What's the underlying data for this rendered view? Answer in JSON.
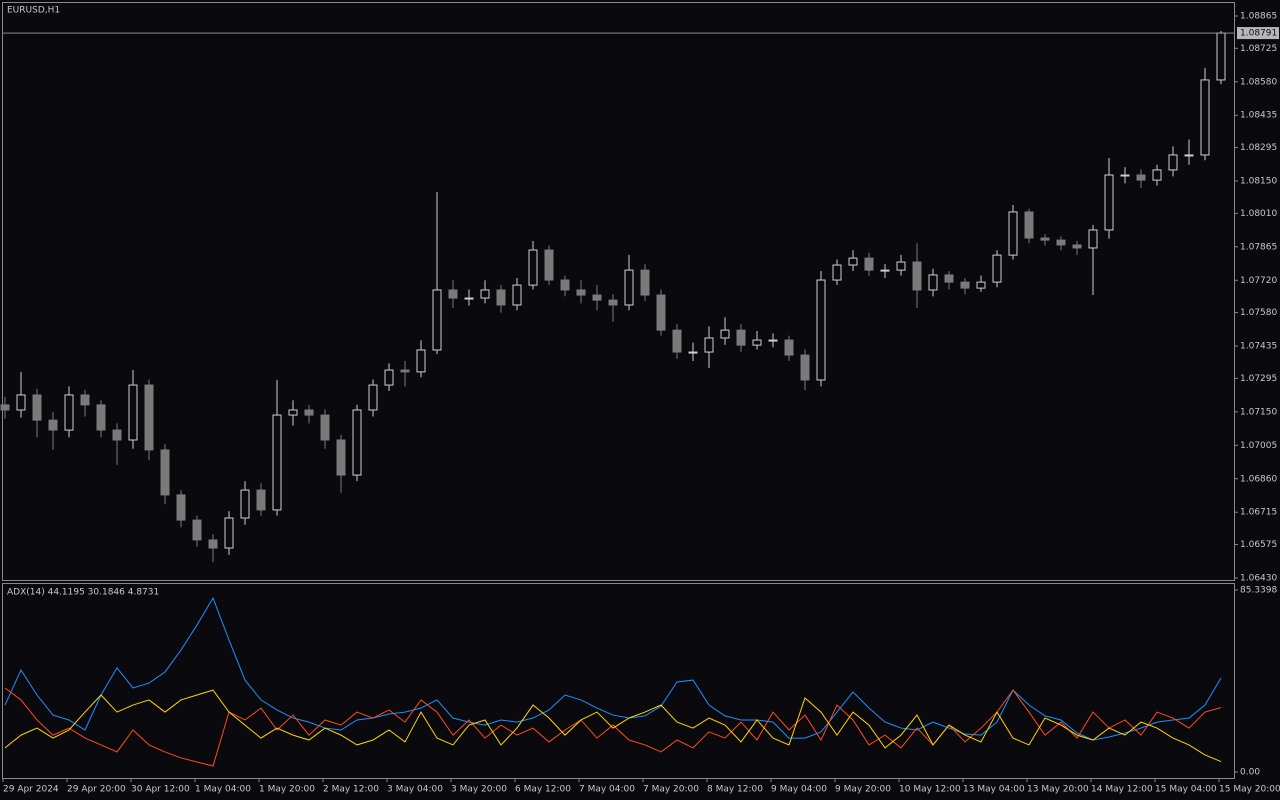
{
  "chart_data": [
    {
      "type": "candlestick",
      "title": "EURUSD,H1",
      "open": [
        1.0718,
        1.07158,
        1.07223,
        1.07114,
        1.07071,
        1.07223,
        1.0718,
        1.07071,
        1.07028,
        1.07266,
        1.06985,
        1.0679,
        1.06681,
        1.06595,
        1.0656,
        1.0669,
        1.06811,
        1.06725,
        1.07136,
        1.07158,
        1.07136,
        1.07028,
        1.06876,
        1.07158,
        1.07266,
        1.07331,
        1.07323,
        1.07418,
        1.07678,
        1.07643,
        1.07643,
        1.07678,
        1.07613,
        1.07699,
        1.07851,
        1.07721,
        1.07678,
        1.07656,
        1.07634,
        1.07613,
        1.07764,
        1.07656,
        1.07504,
        1.07409,
        1.07409,
        1.0747,
        1.07504,
        1.07439,
        1.07461,
        1.07461,
        1.07396,
        1.07288,
        1.07721,
        1.07786,
        1.07816,
        1.07764,
        1.07764,
        1.07799,
        1.07678,
        1.07743,
        1.07712,
        1.07686,
        1.07712,
        1.07829,
        1.08016,
        1.07903,
        1.07894,
        1.07873,
        1.0786,
        1.07938,
        1.08176,
        1.08176,
        1.08154,
        1.08198,
        1.08263,
        1.08263,
        1.08588
      ],
      "high": [
        1.07215,
        1.07323,
        1.0725,
        1.0715,
        1.0726,
        1.07245,
        1.072,
        1.071,
        1.07331,
        1.0729,
        1.0701,
        1.0681,
        1.067,
        1.0662,
        1.0672,
        1.0685,
        1.0684,
        1.07288,
        1.072,
        1.0718,
        1.0716,
        1.0705,
        1.0718,
        1.0729,
        1.0736,
        1.0737,
        1.0746,
        1.08102,
        1.0772,
        1.0768,
        1.0772,
        1.077,
        1.0773,
        1.0789,
        1.0787,
        1.0774,
        1.0772,
        1.077,
        1.0766,
        1.0783,
        1.0779,
        1.0768,
        1.0753,
        1.0745,
        1.0752,
        1.0756,
        1.0753,
        1.075,
        1.0749,
        1.0748,
        1.0742,
        1.0776,
        1.0781,
        1.0785,
        1.0784,
        1.0779,
        1.0783,
        1.0788,
        1.0777,
        1.0776,
        1.0773,
        1.0774,
        1.0785,
        1.08046,
        1.0803,
        1.0792,
        1.0791,
        1.0789,
        1.0796,
        1.0825,
        1.0821,
        1.082,
        1.0822,
        1.083,
        1.0833,
        1.0864,
        1.088
      ],
      "low": [
        1.0712,
        1.07125,
        1.0704,
        1.06985,
        1.0704,
        1.0713,
        1.0704,
        1.0692,
        1.0699,
        1.0694,
        1.0675,
        1.0665,
        1.06565,
        1.06499,
        1.0653,
        1.0666,
        1.067,
        1.067,
        1.0709,
        1.071,
        1.0699,
        1.068,
        1.0685,
        1.0713,
        1.0724,
        1.0726,
        1.073,
        1.074,
        1.076,
        1.0761,
        1.0762,
        1.0758,
        1.0759,
        1.0768,
        1.077,
        1.0765,
        1.0762,
        1.0759,
        1.0754,
        1.0759,
        1.0763,
        1.0748,
        1.0738,
        1.0737,
        1.0734,
        1.0744,
        1.0741,
        1.0742,
        1.0743,
        1.0737,
        1.07244,
        1.0726,
        1.077,
        1.0776,
        1.0774,
        1.0773,
        1.0774,
        1.076,
        1.0765,
        1.0768,
        1.0766,
        1.0767,
        1.0769,
        1.0781,
        1.0788,
        1.0787,
        1.0785,
        1.0783,
        1.07656,
        1.079,
        1.0814,
        1.0812,
        1.0813,
        1.0817,
        1.0822,
        1.0824,
        1.0857
      ],
      "close": [
        1.07158,
        1.07223,
        1.07114,
        1.07071,
        1.07223,
        1.0718,
        1.07071,
        1.07028,
        1.07266,
        1.06985,
        1.0679,
        1.06681,
        1.06595,
        1.0656,
        1.0669,
        1.06811,
        1.06725,
        1.07136,
        1.07158,
        1.07136,
        1.07028,
        1.06876,
        1.07158,
        1.07266,
        1.07331,
        1.07323,
        1.07418,
        1.07678,
        1.07643,
        1.07643,
        1.07678,
        1.07613,
        1.07699,
        1.07851,
        1.07721,
        1.07678,
        1.07656,
        1.07634,
        1.07613,
        1.07764,
        1.07656,
        1.07504,
        1.07409,
        1.07409,
        1.0747,
        1.07504,
        1.07439,
        1.07461,
        1.07461,
        1.07396,
        1.07288,
        1.07721,
        1.07786,
        1.07816,
        1.07764,
        1.07764,
        1.07799,
        1.07678,
        1.07743,
        1.07712,
        1.07686,
        1.07712,
        1.07829,
        1.08016,
        1.07903,
        1.07894,
        1.07873,
        1.0786,
        1.07938,
        1.08176,
        1.08176,
        1.08154,
        1.08198,
        1.08263,
        1.08263,
        1.08588,
        1.08791
      ],
      "up_color": "#cfcfcf",
      "down_color": "#7a7a7a",
      "ylim": [
        1.0643,
        1.08865
      ],
      "yticks": [
        1.08865,
        1.08725,
        {
          "value": 1.0858,
          "label": "1.08580"
        },
        1.08435,
        1.08295,
        {
          "value": 1.0815,
          "label": "1.08150"
        },
        {
          "value": 1.0801,
          "label": "1.08010"
        },
        1.07865,
        {
          "value": 1.0772,
          "label": "1.07720"
        },
        {
          "value": 1.0758,
          "label": "1.07580"
        },
        1.07435,
        1.07295,
        {
          "value": 1.0715,
          "label": "1.07150"
        },
        1.07005,
        {
          "value": 1.0686,
          "label": "1.06860"
        },
        1.06715,
        1.06575,
        {
          "value": 1.0643,
          "label": "1.06430"
        }
      ],
      "grid": false
    },
    {
      "type": "line",
      "title": "ADX(14) 44.1195 30.1846 4.8731",
      "categories": [
        "29 Apr 2024",
        null,
        null,
        null,
        "29 Apr 20:00",
        null,
        null,
        null,
        "30 Apr 12:00",
        null,
        null,
        null,
        "1 May 04:00",
        null,
        null,
        null,
        "1 May 20:00",
        null,
        null,
        null,
        "2 May 12:00",
        null,
        null,
        null,
        "3 May 04:00",
        null,
        null,
        null,
        "3 May 20:00",
        null,
        null,
        null,
        "6 May 12:00",
        null,
        null,
        null,
        "7 May 04:00",
        null,
        null,
        null,
        "7 May 20:00",
        null,
        null,
        null,
        "8 May 12:00",
        null,
        null,
        null,
        "9 May 04:00",
        null,
        null,
        null,
        "9 May 20:00",
        null,
        null,
        null,
        "10 May 12:00",
        null,
        null,
        null,
        "13 May 04:00",
        null,
        null,
        null,
        "13 May 20:00",
        null,
        null,
        null,
        "14 May 12:00",
        null,
        null,
        null,
        "15 May 04:00",
        null,
        null,
        null,
        "15 May 20:00"
      ],
      "series": [
        {
          "color": "#1e90ff",
          "values": [
            31.4,
            47.8,
            36.1,
            26.7,
            24.4,
            19.7,
            36.1,
            48.8,
            39.4,
            41.7,
            46.9,
            57.2,
            68.9,
            81.6,
            61.9,
            43.1,
            33.8,
            29.1,
            25.3,
            23.4,
            20.6,
            19.7,
            24.4,
            25.3,
            27.2,
            28.1,
            30.0,
            33.8,
            25.3,
            23.4,
            22.0,
            24.4,
            23.4,
            25.3,
            29.1,
            36.1,
            33.8,
            30.0,
            26.7,
            25.3,
            26.3,
            30.9,
            42.2,
            43.1,
            31.4,
            26.3,
            24.4,
            24.4,
            23.4,
            15.9,
            15.9,
            18.8,
            28.1,
            37.5,
            30.0,
            23.4,
            20.6,
            19.7,
            23.4,
            20.6,
            17.8,
            17.3,
            23.4,
            38.4,
            31.4,
            26.3,
            24.4,
            18.3,
            15.0,
            16.4,
            18.3,
            20.6,
            23.4,
            24.4,
            25.3,
            31.4,
            44.1
          ]
        },
        {
          "color": "#ff4a1c",
          "values": [
            39.4,
            33.8,
            24.4,
            17.3,
            20.6,
            15.9,
            12.7,
            9.4,
            19.7,
            12.7,
            9.4,
            6.6,
            4.7,
            2.8,
            28.1,
            24.4,
            30.0,
            19.7,
            26.7,
            17.3,
            24.4,
            22.0,
            28.1,
            25.3,
            29.1,
            23.4,
            33.8,
            28.1,
            17.3,
            24.4,
            15.9,
            22.0,
            17.3,
            20.6,
            14.1,
            19.7,
            24.4,
            15.9,
            22.0,
            15.0,
            12.7,
            9.4,
            15.0,
            11.3,
            18.8,
            15.9,
            23.4,
            15.0,
            28.1,
            19.7,
            26.7,
            15.0,
            31.4,
            24.4,
            12.7,
            17.3,
            11.3,
            20.6,
            12.7,
            22.0,
            14.1,
            20.6,
            28.1,
            38.4,
            28.1,
            17.3,
            23.4,
            15.9,
            28.1,
            20.6,
            24.4,
            17.3,
            28.1,
            25.3,
            20.6,
            28.1,
            30.2
          ]
        },
        {
          "color": "#ffd400",
          "values": [
            11.3,
            17.3,
            20.6,
            15.9,
            19.7,
            28.1,
            36.1,
            28.1,
            31.4,
            33.8,
            28.1,
            33.8,
            36.1,
            38.4,
            28.1,
            22.0,
            15.9,
            20.6,
            17.3,
            15.0,
            20.6,
            17.3,
            12.7,
            15.0,
            19.7,
            14.1,
            28.1,
            15.9,
            12.7,
            22.0,
            24.4,
            12.7,
            20.6,
            31.4,
            25.3,
            17.3,
            24.4,
            28.1,
            20.6,
            25.3,
            28.1,
            31.4,
            23.4,
            20.6,
            25.3,
            22.0,
            14.1,
            24.4,
            15.9,
            12.7,
            34.7,
            28.1,
            17.3,
            28.1,
            22.0,
            11.3,
            17.3,
            26.7,
            12.7,
            22.0,
            17.3,
            14.1,
            28.1,
            15.9,
            12.7,
            25.3,
            22.0,
            17.3,
            15.0,
            20.6,
            17.3,
            23.4,
            20.6,
            15.9,
            12.7,
            8.0,
            4.9
          ]
        }
      ],
      "ylim": [
        0,
        85.3398
      ],
      "yticks": [
        {
          "value": 0,
          "label": "0.00"
        },
        85.3398
      ],
      "grid": false
    }
  ]
}
